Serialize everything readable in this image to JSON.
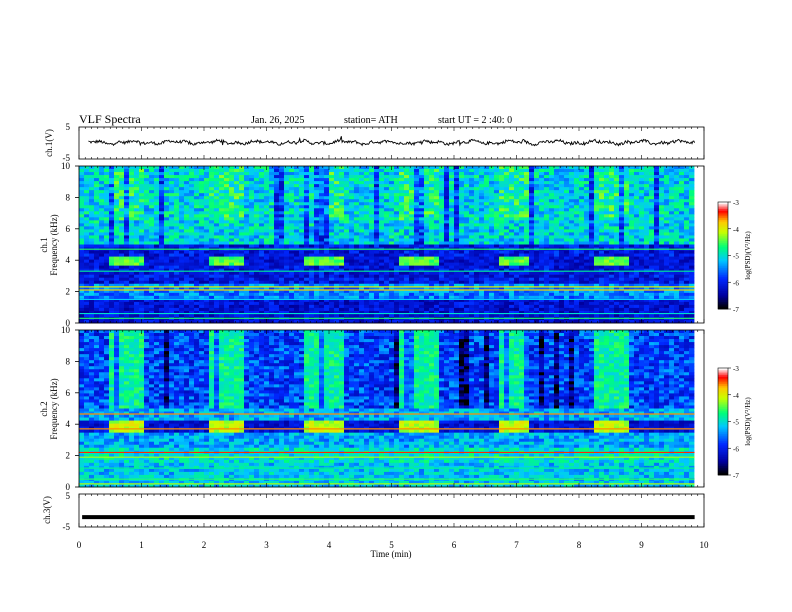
{
  "header": {
    "title": "VLF  Spectra",
    "date": "Jan. 26, 2025",
    "station": "station= ATH",
    "start": "start  UT  =   2 :40: 0"
  },
  "colors": {
    "spectrogram_scale": [
      "#000000",
      "#0000ff",
      "#00c8ff",
      "#00ff80",
      "#ffff00",
      "#ff0000",
      "#ffffff"
    ],
    "trace": "#000000"
  },
  "chart_data": [
    {
      "type": "line",
      "panel": "channel 1 waveform",
      "ylabel": "ch.1(V)",
      "ylim": [
        -5,
        5
      ],
      "yticks": [
        "5",
        "-5"
      ],
      "xlim": [
        0,
        10
      ],
      "description_values": {
        "mean_V": 0,
        "approx_range_V": [
          -1,
          1
        ]
      }
    },
    {
      "type": "heatmap",
      "panel": "channel 1 spectrogram",
      "ylabel_line1": "ch.1",
      "ylabel_line2": "Frequency  (kHz)",
      "ylim": [
        0,
        10
      ],
      "yticks": [
        "0",
        "2",
        "4",
        "6",
        "8",
        "10"
      ],
      "xlim": [
        0,
        10
      ],
      "colorbar": {
        "label": "log(PSD)(V²/Hz)",
        "range": [
          -7,
          -3
        ],
        "ticks": [
          "-3",
          "-4",
          "-5",
          "-6",
          "-7"
        ]
      },
      "bursts_min": [
        [
          0.5,
          1.05
        ],
        [
          2.05,
          2.65
        ],
        [
          3.6,
          4.2
        ],
        [
          5.15,
          5.75
        ],
        [
          6.7,
          7.2
        ],
        [
          8.25,
          8.8
        ]
      ],
      "burst_freq_kHz": [
        3.6,
        4.3
      ]
    },
    {
      "type": "heatmap",
      "panel": "channel 2 spectrogram",
      "ylabel_line1": "ch.2",
      "ylabel_line2": "Frequency  (kHz)",
      "ylim": [
        0,
        10
      ],
      "yticks": [
        "0",
        "2",
        "4",
        "6",
        "8",
        "10"
      ],
      "xlim": [
        0,
        10
      ],
      "colorbar": {
        "label": "log(PSD)(V²/Hz)",
        "range": [
          -7,
          -3
        ],
        "ticks": [
          "-3",
          "-4",
          "-5",
          "-6",
          "-7"
        ]
      },
      "bursts_min": [
        [
          0.5,
          1.05
        ],
        [
          2.05,
          2.65
        ],
        [
          3.6,
          4.2
        ],
        [
          5.15,
          5.75
        ],
        [
          6.7,
          7.2
        ],
        [
          8.25,
          8.8
        ]
      ],
      "burst_freq_kHz": [
        3.5,
        4.3
      ]
    },
    {
      "type": "line",
      "panel": "channel 3 waveform",
      "ylabel": "ch.3(V)",
      "ylim": [
        -5,
        5
      ],
      "yticks": [
        "5",
        "-5"
      ],
      "xlim": [
        0,
        10
      ],
      "level_V": -2
    }
  ],
  "xaxis": {
    "label": "Time  (min)",
    "ticks": [
      "0",
      "1",
      "2",
      "3",
      "4",
      "5",
      "6",
      "7",
      "8",
      "9",
      "10"
    ]
  }
}
